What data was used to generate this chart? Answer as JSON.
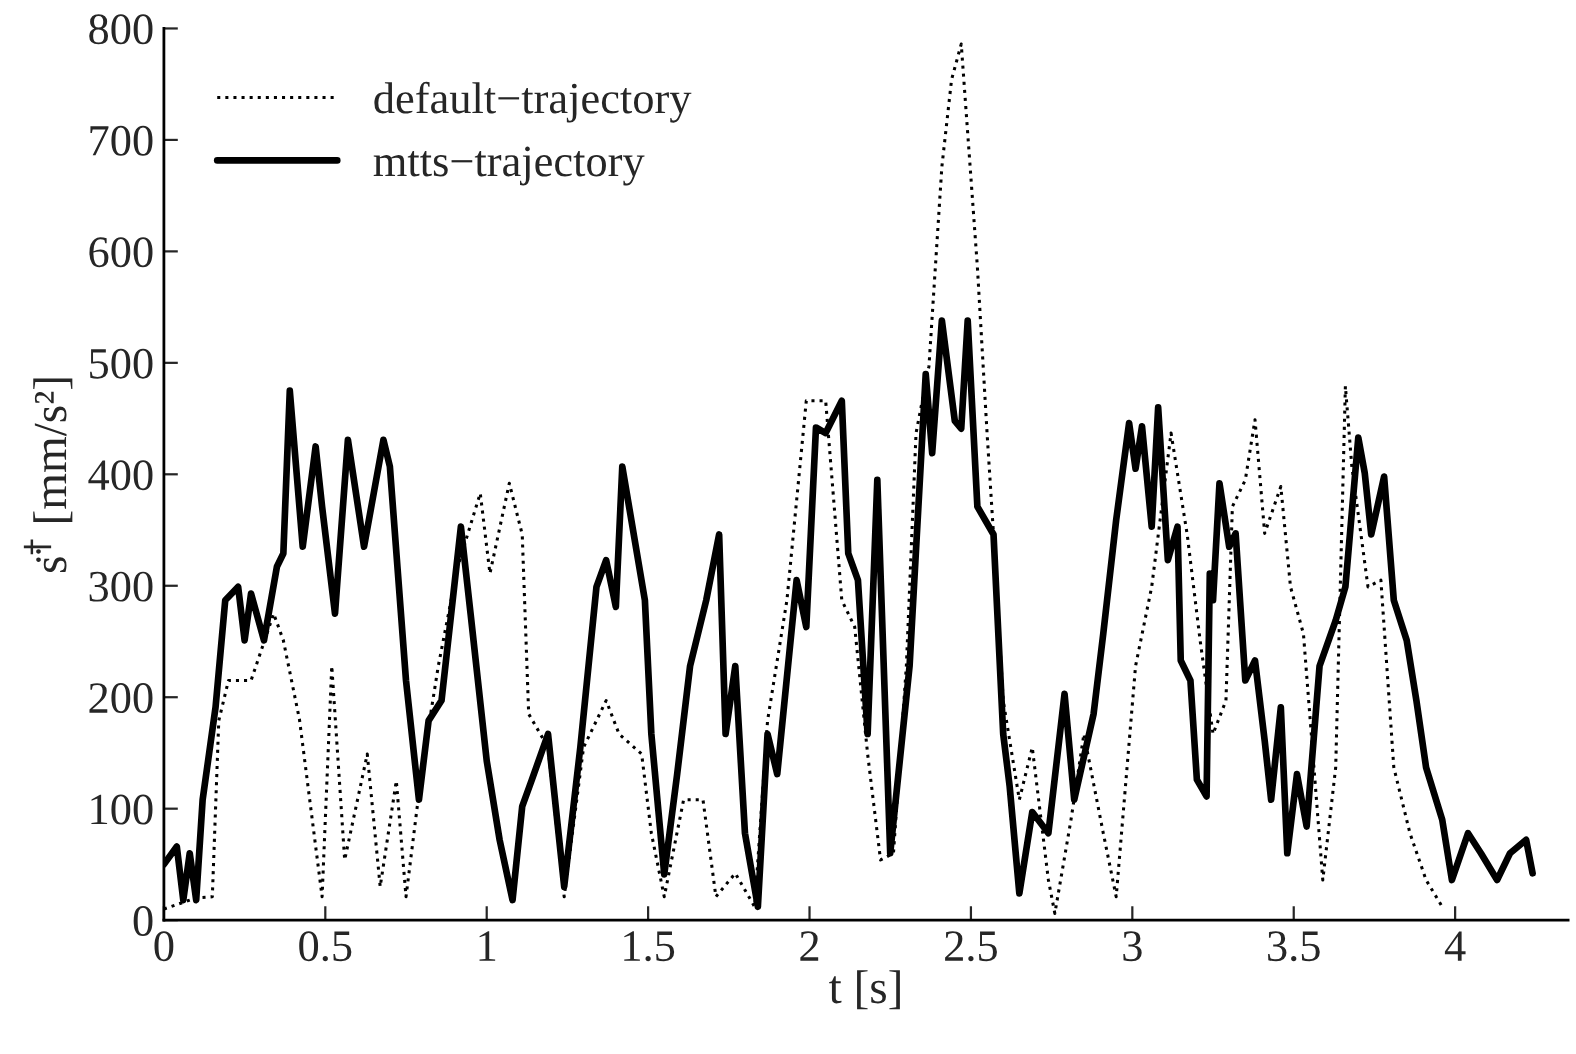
{
  "chart_data": {
    "type": "line",
    "xlabel": "t [s]",
    "ylabel": "s̈$^{†}$ [mm/s²]",
    "xlim": [
      0,
      4.35
    ],
    "ylim": [
      0,
      800
    ],
    "xticks": [
      0,
      0.5,
      1,
      1.5,
      2,
      2.5,
      3,
      3.5,
      4
    ],
    "yticks": [
      0,
      100,
      200,
      300,
      400,
      500,
      600,
      700,
      800
    ],
    "grid": false,
    "legend": "top left",
    "series": [
      {
        "name": "default−trajectory",
        "color": "#000000",
        "line_style": "dotted",
        "x": [
          0,
          0.1,
          0.15,
          0.17,
          0.2,
          0.27,
          0.34,
          0.37,
          0.42,
          0.49,
          0.52,
          0.56,
          0.63,
          0.67,
          0.72,
          0.75,
          0.8,
          0.85,
          0.91,
          0.98,
          1.01,
          1.07,
          1.11,
          1.13,
          1.19,
          1.24,
          1.3,
          1.37,
          1.41,
          1.48,
          1.51,
          1.55,
          1.61,
          1.67,
          1.71,
          1.77,
          1.83,
          1.87,
          1.93,
          1.99,
          2.05,
          2.1,
          2.14,
          2.18,
          2.22,
          2.26,
          2.3,
          2.33,
          2.37,
          2.41,
          2.44,
          2.47,
          2.49,
          2.52,
          2.55,
          2.57,
          2.6,
          2.65,
          2.69,
          2.74,
          2.76,
          2.81,
          2.85,
          2.91,
          2.95,
          3.01,
          3.06,
          3.12,
          3.17,
          3.21,
          3.25,
          3.29,
          3.31,
          3.35,
          3.38,
          3.41,
          3.46,
          3.49,
          3.53,
          3.59,
          3.63,
          3.66,
          3.68,
          3.73,
          3.77,
          3.81,
          3.86,
          3.91,
          3.96
        ],
        "values": [
          10,
          20,
          21,
          179,
          215,
          215,
          275,
          251,
          180,
          21,
          228,
          54,
          149,
          30,
          125,
          21,
          137,
          228,
          317,
          383,
          311,
          392,
          346,
          185,
          155,
          21,
          155,
          197,
          167,
          149,
          78,
          21,
          108,
          108,
          21,
          42,
          12,
          179,
          287,
          466,
          466,
          287,
          263,
          149,
          54,
          60,
          228,
          437,
          497,
          676,
          754,
          786,
          706,
          586,
          437,
          346,
          197,
          108,
          155,
          36,
          6,
          90,
          167,
          78,
          21,
          228,
          299,
          437,
          346,
          251,
          167,
          197,
          371,
          395,
          449,
          347,
          389,
          299,
          257,
          36,
          137,
          479,
          407,
          299,
          305,
          137,
          78,
          36,
          12
        ]
      },
      {
        "name": "mtts−trajectory",
        "color": "#000000",
        "line_style": "solid",
        "x": [
          0,
          0.04,
          0.06,
          0.08,
          0.1,
          0.12,
          0.16,
          0.19,
          0.23,
          0.25,
          0.27,
          0.31,
          0.35,
          0.37,
          0.39,
          0.43,
          0.47,
          0.49,
          0.53,
          0.57,
          0.62,
          0.65,
          0.68,
          0.7,
          0.75,
          0.79,
          0.82,
          0.86,
          0.92,
          0.95,
          1.0,
          1.04,
          1.08,
          1.11,
          1.14,
          1.19,
          1.24,
          1.29,
          1.34,
          1.37,
          1.4,
          1.42,
          1.49,
          1.51,
          1.55,
          1.59,
          1.63,
          1.68,
          1.72,
          1.74,
          1.77,
          1.8,
          1.84,
          1.87,
          1.9,
          1.96,
          1.99,
          2.02,
          2.05,
          2.1,
          2.12,
          2.15,
          2.18,
          2.21,
          2.25,
          2.31,
          2.36,
          2.38,
          2.41,
          2.45,
          2.47,
          2.49,
          2.52,
          2.57,
          2.6,
          2.62,
          2.65,
          2.69,
          2.74,
          2.79,
          2.82,
          2.88,
          2.91,
          2.95,
          2.99,
          3.01,
          3.03,
          3.06,
          3.08,
          3.11,
          3.14,
          3.15,
          3.18,
          3.2,
          3.23,
          3.24,
          3.25,
          3.27,
          3.3,
          3.32,
          3.35,
          3.38,
          3.41,
          3.43,
          3.46,
          3.48,
          3.51,
          3.54,
          3.58,
          3.63,
          3.66,
          3.7,
          3.72,
          3.74,
          3.78,
          3.81,
          3.85,
          3.88,
          3.91,
          3.96,
          3.99,
          4.04,
          4.08,
          4.13,
          4.17,
          4.22,
          4.24
        ],
        "values": [
          50,
          66,
          18,
          60,
          18,
          108,
          191,
          287,
          299,
          251,
          293,
          251,
          317,
          329,
          475,
          335,
          425,
          371,
          275,
          431,
          335,
          383,
          431,
          407,
          215,
          108,
          179,
          197,
          353,
          275,
          143,
          72,
          18,
          102,
          126,
          167,
          30,
          155,
          299,
          323,
          281,
          407,
          287,
          167,
          41,
          131,
          228,
          287,
          346,
          167,
          228,
          78,
          12,
          167,
          131,
          305,
          263,
          442,
          437,
          466,
          329,
          305,
          167,
          395,
          60,
          228,
          490,
          419,
          538,
          448,
          441,
          538,
          371,
          346,
          167,
          120,
          24,
          97,
          78,
          203,
          108,
          185,
          257,
          359,
          446,
          405,
          443,
          353,
          460,
          323,
          353,
          233,
          215,
          126,
          111,
          311,
          287,
          392,
          335,
          347,
          215,
          233,
          161,
          108,
          191,
          60,
          131,
          84,
          228,
          269,
          299,
          433,
          401,
          346,
          398,
          287,
          251,
          197,
          137,
          90,
          36,
          78,
          60,
          36,
          60,
          72,
          42
        ]
      }
    ]
  }
}
